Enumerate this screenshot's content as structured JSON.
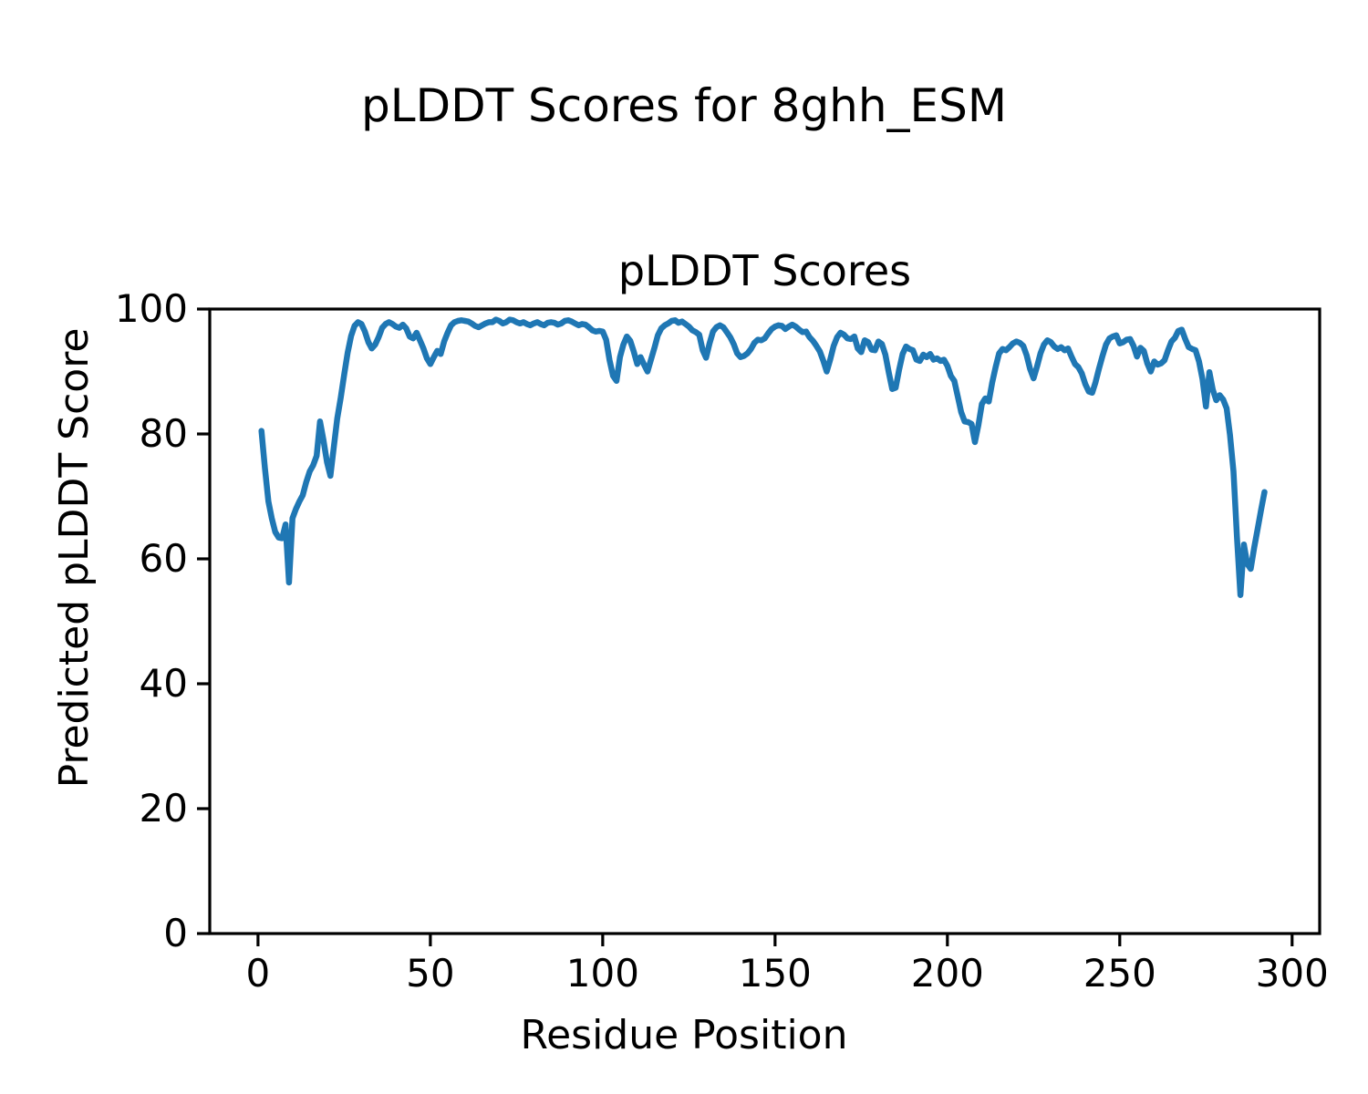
{
  "figure": {
    "suptitle": "pLDDT Scores for 8ghh_ESM",
    "background_color": "#ffffff"
  },
  "chart_data": {
    "type": "line",
    "title": "pLDDT Scores",
    "xlabel": "Residue Position",
    "ylabel": "Predicted pLDDT Score",
    "legend": "none",
    "grid": false,
    "line_color": "#1f77b4",
    "line_width": 6.5,
    "spine_color": "#000000",
    "xlim": [
      -14,
      308
    ],
    "ylim": [
      0,
      100
    ],
    "x_ticks": [
      0,
      50,
      100,
      150,
      200,
      250,
      300
    ],
    "y_ticks": [
      0,
      20,
      40,
      60,
      80,
      100
    ],
    "x_start": 1,
    "x_label_meaning": "residue index",
    "values": [
      80.5,
      74.5,
      69.2,
      66.5,
      64.3,
      63.4,
      63.3,
      65.5,
      56.2,
      66.5,
      68.0,
      69.2,
      70.2,
      72.3,
      74.0,
      75.0,
      76.5,
      82.0,
      79.0,
      75.5,
      73.3,
      78.0,
      82.5,
      85.8,
      89.5,
      93.0,
      95.7,
      97.3,
      97.9,
      97.6,
      96.4,
      94.7,
      93.7,
      94.3,
      95.5,
      97.0,
      97.6,
      97.9,
      97.6,
      97.2,
      97.0,
      97.5,
      96.9,
      95.6,
      95.3,
      96.2,
      95.0,
      93.7,
      92.1,
      91.2,
      92.3,
      93.3,
      92.8,
      94.8,
      96.2,
      97.4,
      97.9,
      98.1,
      98.2,
      98.1,
      98.0,
      97.7,
      97.3,
      97.1,
      97.4,
      97.7,
      97.9,
      97.9,
      98.3,
      98.1,
      97.7,
      97.9,
      98.3,
      98.2,
      97.9,
      97.7,
      97.9,
      97.6,
      97.4,
      97.7,
      97.9,
      97.6,
      97.4,
      97.8,
      97.9,
      97.8,
      97.5,
      97.7,
      98.1,
      98.2,
      98.0,
      97.7,
      97.4,
      97.6,
      97.5,
      97.1,
      96.6,
      96.4,
      96.5,
      96.4,
      95.1,
      91.8,
      89.3,
      88.5,
      92.3,
      94.3,
      95.6,
      94.9,
      93.2,
      91.2,
      92.3,
      91.1,
      90.0,
      91.9,
      93.8,
      95.8,
      96.9,
      97.4,
      97.7,
      98.1,
      98.2,
      97.8,
      98.0,
      97.6,
      97.2,
      96.6,
      96.3,
      95.9,
      93.4,
      92.2,
      94.5,
      96.4,
      97.1,
      97.4,
      97.1,
      96.3,
      95.5,
      94.4,
      92.9,
      92.3,
      92.5,
      92.9,
      93.6,
      94.6,
      95.1,
      95.0,
      95.3,
      96.1,
      96.8,
      97.2,
      97.4,
      97.3,
      96.8,
      97.2,
      97.5,
      97.2,
      96.7,
      96.3,
      96.4,
      95.5,
      94.9,
      94.1,
      93.2,
      91.7,
      90.0,
      91.9,
      94.1,
      95.5,
      96.2,
      95.9,
      95.3,
      95.2,
      95.6,
      93.7,
      93.1,
      95.0,
      94.7,
      93.5,
      93.4,
      94.8,
      94.4,
      92.7,
      89.8,
      87.2,
      87.4,
      90.3,
      92.8,
      94.0,
      93.6,
      93.4,
      91.9,
      91.7,
      92.7,
      92.3,
      92.8,
      91.9,
      92.1,
      91.7,
      91.9,
      90.9,
      89.3,
      88.5,
      86.0,
      83.5,
      82.0,
      81.9,
      81.6,
      78.7,
      81.4,
      84.8,
      85.7,
      85.2,
      88.2,
      90.7,
      92.9,
      93.6,
      93.4,
      93.9,
      94.5,
      94.8,
      94.6,
      94.1,
      92.6,
      90.4,
      88.9,
      90.8,
      92.9,
      94.3,
      95.0,
      94.7,
      94.0,
      93.6,
      93.9,
      93.4,
      93.7,
      92.4,
      91.2,
      90.7,
      89.7,
      88.0,
      86.8,
      86.6,
      88.3,
      90.5,
      92.5,
      94.3,
      95.3,
      95.6,
      95.8,
      94.5,
      94.7,
      95.1,
      95.2,
      94.1,
      92.4,
      93.8,
      93.3,
      91.3,
      90.0,
      91.6,
      91.1,
      91.3,
      91.8,
      93.4,
      94.8,
      95.4,
      96.5,
      96.7,
      95.2,
      93.9,
      93.6,
      93.4,
      91.6,
      88.8,
      84.4,
      89.9,
      87.1,
      85.4,
      86.2,
      85.5,
      84.1,
      79.8,
      74.0,
      63.5,
      54.2,
      62.3,
      59.2,
      58.4,
      61.8,
      64.8,
      67.8,
      70.7
    ]
  }
}
